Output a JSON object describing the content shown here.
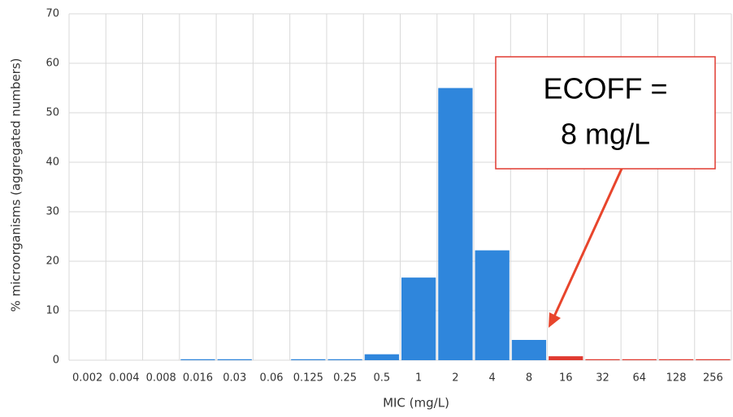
{
  "chart_data": {
    "type": "bar",
    "x_label": "MIC (mg/L)",
    "y_label": "% microorganisms (aggregated numbers)",
    "categories": [
      "0.002",
      "0.004",
      "0.008",
      "0.016",
      "0.03",
      "0.06",
      "0.125",
      "0.25",
      "0.5",
      "1",
      "2",
      "4",
      "8",
      "16",
      "32",
      "64",
      "128",
      "256"
    ],
    "values": [
      0,
      0,
      0,
      0.2,
      0.2,
      0,
      0.2,
      0.2,
      1.2,
      16.7,
      55,
      22.2,
      4.1,
      0.8,
      0.2,
      0.2,
      0.2,
      0.2
    ],
    "colors": [
      "#2f86dc",
      "#2f86dc",
      "#2f86dc",
      "#2f86dc",
      "#2f86dc",
      "#2f86dc",
      "#2f86dc",
      "#2f86dc",
      "#2f86dc",
      "#2f86dc",
      "#2f86dc",
      "#2f86dc",
      "#2f86dc",
      "#e03a30",
      "#e03a30",
      "#e03a30",
      "#e03a30",
      "#e03a30"
    ],
    "ylim": [
      0,
      70
    ],
    "yticks": [
      0,
      10,
      20,
      30,
      40,
      50,
      60,
      70
    ],
    "grid": true,
    "annotation": [
      "ECOFF =",
      "8 mg/L"
    ]
  }
}
